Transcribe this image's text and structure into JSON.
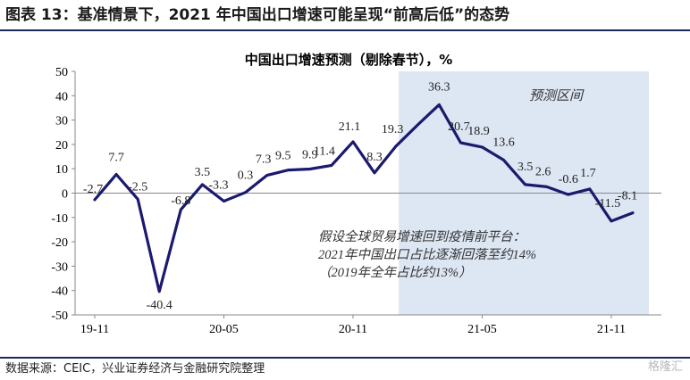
{
  "figure": {
    "title": "图表 13：基准情景下，2021 年中国出口增速可能呈现“前高后低”的态势",
    "source": "数据来源：CEIC，兴业证券经济与金融研究院整理",
    "watermark": "格隆汇"
  },
  "chart_data": {
    "type": "line",
    "title": "中国出口增速预测（剔除春节），%",
    "ylim": [
      -50,
      50
    ],
    "yticks": [
      50,
      40,
      30,
      20,
      10,
      0,
      -10,
      -20,
      -30,
      -40,
      -50
    ],
    "x_tick_labels": [
      "19-11",
      "20-05",
      "20-11",
      "21-05",
      "21-11"
    ],
    "x_tick_indices": [
      0,
      6,
      12,
      18,
      24
    ],
    "forecast_region": {
      "label": "预测区间",
      "start_index": 14
    },
    "annotation": [
      "假设全球贸易增速回到疫情前平台：",
      "2021年中国出口占比逐渐回落至约14%",
      "（2019年全年占比约13%）"
    ],
    "color": "#1a1a6e",
    "forecast_color": "#dde6f3",
    "series": [
      {
        "values": [
          -2.7,
          7.7,
          -2.5,
          -40.4,
          -6.8,
          3.5,
          -3.3,
          0.3,
          7.3,
          9.5,
          9.9,
          11.4,
          21.1,
          8.3,
          19.3,
          28.0,
          36.3,
          20.7,
          18.9,
          13.6,
          3.5,
          2.6,
          -0.6,
          1.7,
          -11.5,
          -8.1
        ],
        "labels": [
          "-2.7",
          "7.7",
          "-2.5",
          "-40.4",
          "-6.8",
          "3.5",
          "-3.3",
          "0.3",
          "7.3",
          "9.5",
          "9.9",
          "11.4",
          "21.1",
          "8.3",
          "19.3",
          "",
          "36.3",
          "20.7",
          "18.9",
          "13.6",
          "3.5",
          "2.6",
          "-0.6",
          "1.7",
          "-11.5",
          "-8.1"
        ]
      }
    ]
  }
}
